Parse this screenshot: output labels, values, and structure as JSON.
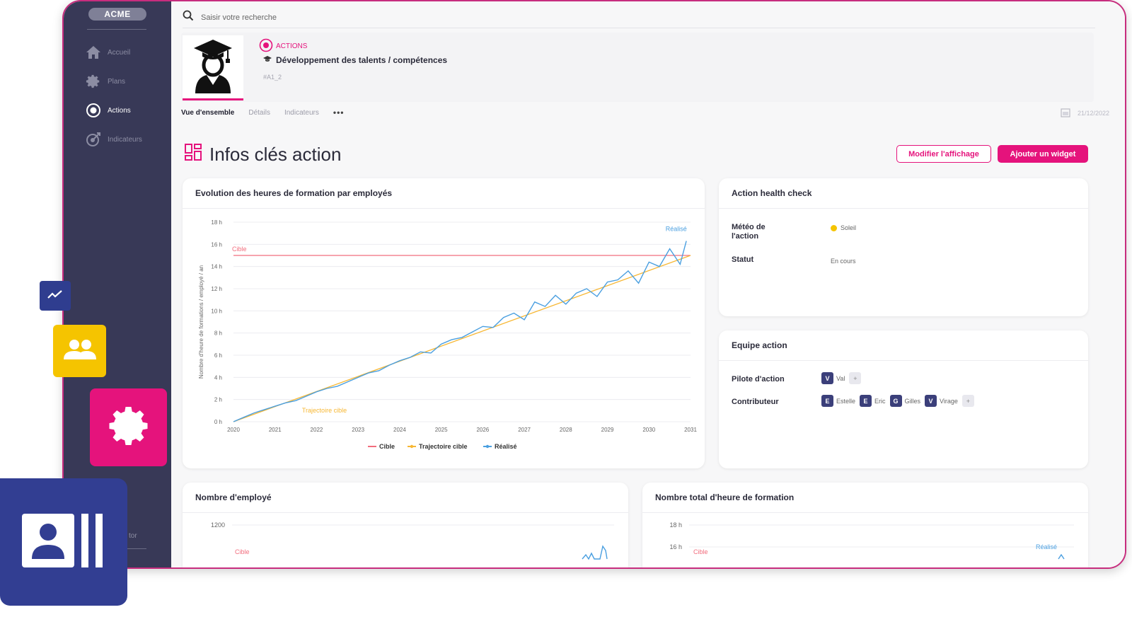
{
  "app": {
    "logo": "ACME",
    "nav": [
      {
        "label": "Accueil",
        "icon": "home-icon"
      },
      {
        "label": "Plans",
        "icon": "gear-icon"
      },
      {
        "label": "Actions",
        "icon": "target-icon"
      },
      {
        "label": "Indicateurs",
        "icon": "dart-icon"
      }
    ],
    "nav_footer": "tor"
  },
  "search": {
    "placeholder": "Saisir votre recherche"
  },
  "action": {
    "breadcrumb": "ACTIONS",
    "title": "Développement des talents / compétences",
    "code": "#A1_2"
  },
  "tabs": [
    "Vue d'ensemble",
    "Détails",
    "Indicateurs"
  ],
  "tabs_more": "•••",
  "date": "21/12/2022",
  "section_title": "Infos clés action",
  "buttons": {
    "modify": "Modifier l'affichage",
    "add_widget": "Ajouter un widget"
  },
  "health": {
    "title": "Action health check",
    "meteo_label": "Météo de l'action",
    "meteo_value": "Soleil",
    "meteo_color": "#f5c400",
    "statut_label": "Statut",
    "statut_value": "En cours"
  },
  "team": {
    "title": "Equipe action",
    "pilot_label": "Pilote d'action",
    "pilots": [
      {
        "initial": "V",
        "name": "Val"
      }
    ],
    "contrib_label": "Contributeur",
    "contributors": [
      {
        "initial": "E",
        "name": "Estelle"
      },
      {
        "initial": "E",
        "name": "Eric"
      },
      {
        "initial": "G",
        "name": "Gilles"
      },
      {
        "initial": "V",
        "name": "Virage"
      }
    ],
    "add_symbol": "+"
  },
  "chart_data": [
    {
      "type": "line",
      "title": "Evolution des heures de formation par employés",
      "ylabel": "Nombre d'heure de formations / employé / an",
      "x_ticks": [
        "2020",
        "2021",
        "2022",
        "2023",
        "2024",
        "2025",
        "2026",
        "2027",
        "2028",
        "2029",
        "2030",
        "2031"
      ],
      "y_ticks": [
        "0 h",
        "2 h",
        "4 h",
        "6 h",
        "8 h",
        "10 h",
        "12 h",
        "14 h",
        "16 h",
        "18 h"
      ],
      "xlim": [
        2020,
        2031
      ],
      "ylim": [
        0,
        18
      ],
      "annotations": {
        "cible": "Cible",
        "trajectoire": "Trajectoire cible",
        "realise": "Réalisé"
      },
      "legend": [
        "Cible",
        "Trajectoire cible",
        "Réalisé"
      ],
      "legend_placement": "bottom",
      "colors": {
        "cible": "#f26d7d",
        "trajectoire": "#f7b733",
        "realise": "#4a9fe0"
      },
      "series": [
        {
          "name": "Cible",
          "x": [
            2020.0,
            2031.0
          ],
          "values": [
            15,
            15
          ]
        },
        {
          "name": "Trajectoire cible",
          "x": [
            2020.0,
            2031.0
          ],
          "values": [
            0,
            15
          ]
        },
        {
          "name": "Réalisé",
          "x": [
            2020.0,
            2020.25,
            2020.5,
            2020.75,
            2021.0,
            2021.25,
            2021.5,
            2021.75,
            2022.0,
            2022.25,
            2022.5,
            2022.75,
            2023.0,
            2023.25,
            2023.5,
            2023.75,
            2024.0,
            2024.25,
            2024.5,
            2024.75,
            2025.0,
            2025.25,
            2025.5,
            2025.75,
            2026.0,
            2026.25,
            2026.5,
            2026.75,
            2027.0,
            2027.25,
            2027.5,
            2027.75,
            2028.0,
            2028.25,
            2028.5,
            2028.75,
            2029.0,
            2029.25,
            2029.5,
            2029.75,
            2030.0,
            2030.25,
            2030.5,
            2030.75,
            2030.9
          ],
          "values": [
            0.0,
            0.4,
            0.8,
            1.1,
            1.4,
            1.7,
            1.9,
            2.3,
            2.7,
            3.0,
            3.2,
            3.6,
            4.0,
            4.4,
            4.6,
            5.1,
            5.5,
            5.8,
            6.3,
            6.2,
            7.0,
            7.4,
            7.6,
            8.1,
            8.6,
            8.5,
            9.4,
            9.8,
            9.2,
            10.8,
            10.4,
            11.4,
            10.6,
            11.6,
            12.0,
            11.3,
            12.6,
            12.8,
            13.6,
            12.5,
            14.4,
            14.0,
            15.6,
            14.2,
            16.3
          ]
        }
      ]
    },
    {
      "type": "line",
      "title": "Nombre d'employé",
      "y_ticks": [
        "1200"
      ],
      "annotations": {
        "cible": "Cible"
      }
    },
    {
      "type": "line",
      "title": "Nombre total d'heure de formation",
      "y_ticks": [
        "18 h",
        "16 h"
      ],
      "annotations": {
        "cible": "Cible",
        "realise": "Réalisé"
      }
    }
  ]
}
